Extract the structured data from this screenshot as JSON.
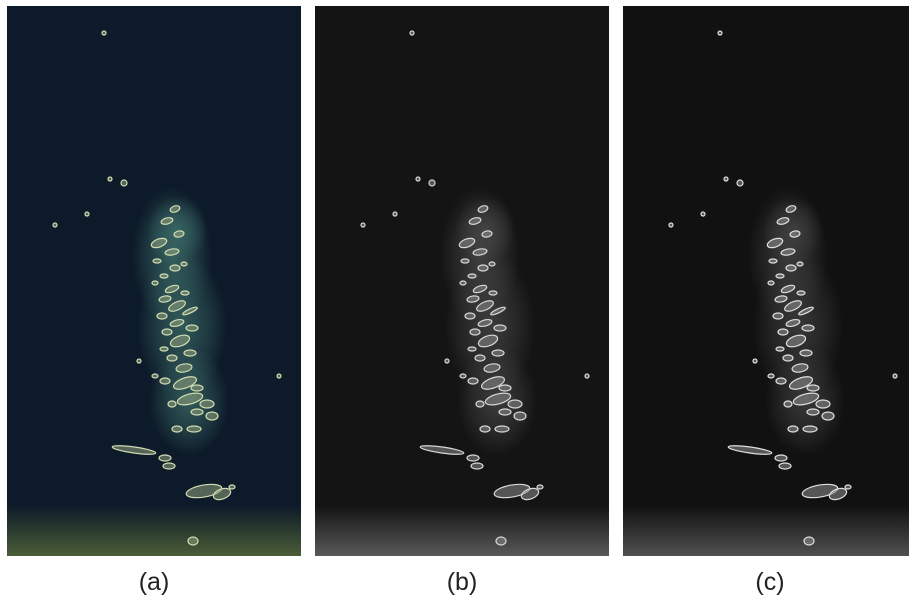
{
  "figure": {
    "panels": [
      {
        "id": "a",
        "caption": "(a)",
        "mode": "color",
        "bg": "#0d1a29",
        "glow": "#3d6f6a",
        "island": "#d2dcb2",
        "island_edge": "#8fa27e",
        "haze": "#5a6e3a"
      },
      {
        "id": "b",
        "caption": "(b)",
        "mode": "gray",
        "bg": "#141414",
        "glow": "#4a4a4a",
        "island": "#d8d8d8",
        "island_edge": "#8a8a8a",
        "haze": "#6a6a6a"
      },
      {
        "id": "c",
        "caption": "(c)",
        "mode": "gray",
        "bg": "#111111",
        "glow": "#454545",
        "island": "#e0e0e0",
        "island_edge": "#909090",
        "haze": "#606060"
      }
    ]
  }
}
